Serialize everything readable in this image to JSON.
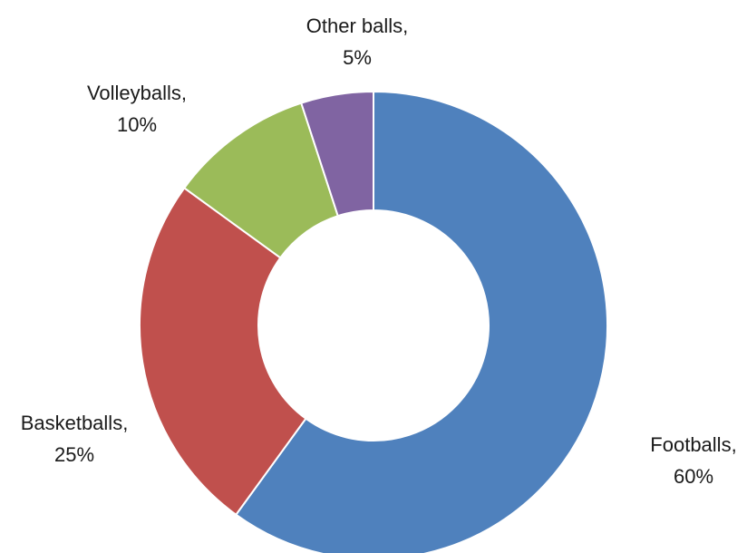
{
  "chart_data": {
    "type": "pie",
    "donut": true,
    "slices": [
      {
        "name": "Footballs",
        "value": 60,
        "label_name": "Footballs,",
        "label_value": "60%",
        "color": "#4F81BD"
      },
      {
        "name": "Basketballs",
        "value": 25,
        "label_name": "Basketballs,",
        "label_value": "25%",
        "color": "#C0504D"
      },
      {
        "name": "Volleyballs",
        "value": 10,
        "label_name": "Volleyballs,",
        "label_value": "10%",
        "color": "#9BBB59"
      },
      {
        "name": "Other balls",
        "value": 5,
        "label_name": "Other balls,",
        "label_value": "5%",
        "color": "#8064A2"
      }
    ],
    "start_angle": "12 o'clock",
    "direction": "clockwise",
    "legend": "none"
  }
}
